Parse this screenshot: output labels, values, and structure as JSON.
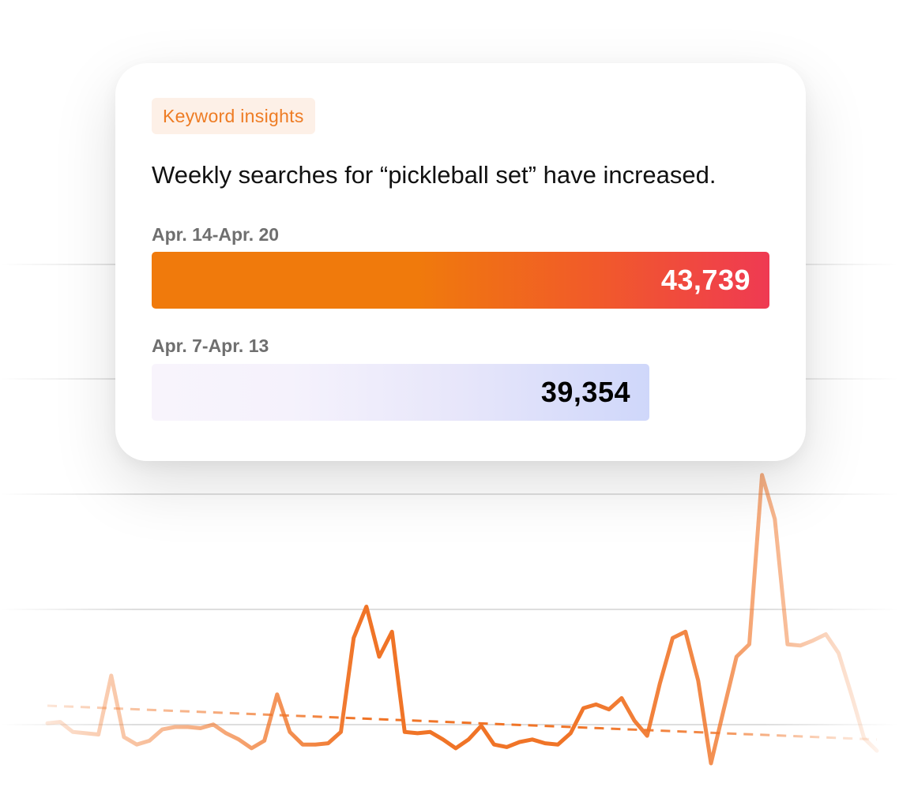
{
  "card": {
    "tag": "Keyword insights",
    "headline": "Weekly searches for “pickleball set” have increased."
  },
  "comparison": [
    {
      "period": "Apr. 14-Apr. 20",
      "value": 43739,
      "value_text": "43,739"
    },
    {
      "period": "Apr. 7-Apr. 13",
      "value": 39354,
      "value_text": "39,354"
    }
  ],
  "colors": {
    "accent": "#ee7c24",
    "line": "#f07427",
    "bar_current_start": "#f07a0c",
    "bar_current_end": "#ef3a52",
    "bar_previous_start": "#f8f4fc",
    "bar_previous_end": "#cfd7fa"
  },
  "chart_data": [
    {
      "type": "bar",
      "orientation": "horizontal",
      "categories": [
        "Apr. 14-Apr. 20",
        "Apr. 7-Apr. 13"
      ],
      "values": [
        43739,
        39354
      ]
    },
    {
      "type": "line",
      "x": [
        1,
        2,
        3,
        4,
        5,
        6,
        7,
        8,
        9,
        10,
        11,
        12,
        13,
        14,
        15,
        16,
        17,
        18,
        19,
        20,
        21,
        22,
        23,
        24,
        25,
        26,
        27,
        28,
        29,
        30,
        31,
        32,
        33,
        34,
        35,
        36,
        37,
        38,
        39,
        40,
        41,
        42,
        43,
        44,
        45,
        46,
        47,
        48,
        49,
        50,
        51,
        52,
        53,
        54,
        55,
        56,
        57,
        58,
        59,
        60,
        61,
        62,
        63,
        64,
        65,
        66
      ],
      "series": [
        {
          "values": [
            12,
            13,
            5,
            4,
            3,
            50,
            1,
            -5,
            -2,
            7,
            9,
            9,
            8,
            11,
            4,
            -1,
            -8,
            -2,
            35,
            5,
            -5,
            -5,
            -4,
            5,
            80,
            105,
            65,
            85,
            5,
            4,
            5,
            -1,
            -8,
            -1,
            10,
            -5,
            -7,
            -3,
            -1,
            -4,
            -5,
            4,
            24,
            27,
            23,
            32,
            14,
            2,
            44,
            80,
            85,
            46,
            -20,
            23,
            65,
            75,
            210,
            175,
            75,
            74,
            78,
            83,
            68,
            35,
            0,
            -10
          ],
          "trend": [
            26,
            -1
          ]
        }
      ],
      "grid": true,
      "ylim": [
        -20,
        225
      ]
    }
  ]
}
